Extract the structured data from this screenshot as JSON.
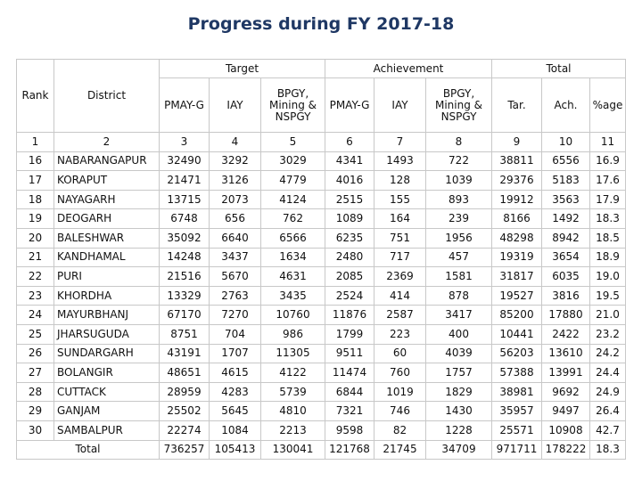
{
  "title": "Progress during FY 2017-18",
  "table": {
    "row_heads": [
      "Rank",
      "District"
    ],
    "groups": [
      "Target",
      "Achievement",
      "Total"
    ],
    "subheads": [
      "PMAY-G",
      "IAY",
      "BPGY, Mining & NSPGY",
      "PMAY-G",
      "IAY",
      "BPGY, Mining & NSPGY",
      "Tar.",
      "Ach.",
      "%age"
    ],
    "col_numbers": [
      "1",
      "2",
      "3",
      "4",
      "5",
      "6",
      "7",
      "8",
      "9",
      "10",
      "11"
    ],
    "rows": [
      [
        "16",
        "NABARANGAPUR",
        "32490",
        "3292",
        "3029",
        "4341",
        "1493",
        "722",
        "38811",
        "6556",
        "16.9"
      ],
      [
        "17",
        "KORAPUT",
        "21471",
        "3126",
        "4779",
        "4016",
        "128",
        "1039",
        "29376",
        "5183",
        "17.6"
      ],
      [
        "18",
        "NAYAGARH",
        "13715",
        "2073",
        "4124",
        "2515",
        "155",
        "893",
        "19912",
        "3563",
        "17.9"
      ],
      [
        "19",
        "DEOGARH",
        "6748",
        "656",
        "762",
        "1089",
        "164",
        "239",
        "8166",
        "1492",
        "18.3"
      ],
      [
        "20",
        "BALESHWAR",
        "35092",
        "6640",
        "6566",
        "6235",
        "751",
        "1956",
        "48298",
        "8942",
        "18.5"
      ],
      [
        "21",
        "KANDHAMAL",
        "14248",
        "3437",
        "1634",
        "2480",
        "717",
        "457",
        "19319",
        "3654",
        "18.9"
      ],
      [
        "22",
        "PURI",
        "21516",
        "5670",
        "4631",
        "2085",
        "2369",
        "1581",
        "31817",
        "6035",
        "19.0"
      ],
      [
        "23",
        "KHORDHA",
        "13329",
        "2763",
        "3435",
        "2524",
        "414",
        "878",
        "19527",
        "3816",
        "19.5"
      ],
      [
        "24",
        "MAYURBHANJ",
        "67170",
        "7270",
        "10760",
        "11876",
        "2587",
        "3417",
        "85200",
        "17880",
        "21.0"
      ],
      [
        "25",
        "JHARSUGUDA",
        "8751",
        "704",
        "986",
        "1799",
        "223",
        "400",
        "10441",
        "2422",
        "23.2"
      ],
      [
        "26",
        "SUNDARGARH",
        "43191",
        "1707",
        "11305",
        "9511",
        "60",
        "4039",
        "56203",
        "13610",
        "24.2"
      ],
      [
        "27",
        "BOLANGIR",
        "48651",
        "4615",
        "4122",
        "11474",
        "760",
        "1757",
        "57388",
        "13991",
        "24.4"
      ],
      [
        "28",
        "CUTTACK",
        "28959",
        "4283",
        "5739",
        "6844",
        "1019",
        "1829",
        "38981",
        "9692",
        "24.9"
      ],
      [
        "29",
        "GANJAM",
        "25502",
        "5645",
        "4810",
        "7321",
        "746",
        "1430",
        "35957",
        "9497",
        "26.4"
      ],
      [
        "30",
        "SAMBALPUR",
        "22274",
        "1084",
        "2213",
        "9598",
        "82",
        "1228",
        "25571",
        "10908",
        "42.7"
      ]
    ],
    "total": [
      "Total",
      "736257",
      "105413",
      "130041",
      "121768",
      "21745",
      "34709",
      "971711",
      "178222",
      "18.3"
    ]
  }
}
